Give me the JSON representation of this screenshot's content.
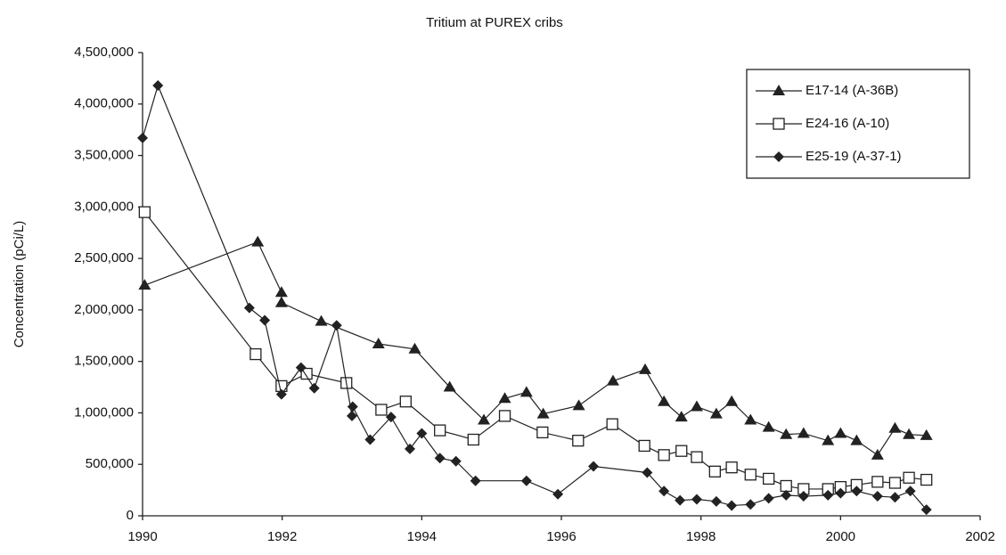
{
  "chart_data": {
    "type": "line",
    "title": "Tritium at PUREX cribs",
    "y_label": "Concentration (pCi/L)",
    "xlim": [
      1990,
      2002
    ],
    "xticks": [
      1990,
      1992,
      1994,
      1996,
      1998,
      2000,
      2002
    ],
    "ylim": [
      0,
      4500000
    ],
    "yticks": [
      0,
      {
        "value": 500000,
        "label": "500,000"
      },
      {
        "value": 1000000,
        "label": "1,000,000"
      },
      {
        "value": 1500000,
        "label": "1,500,000"
      },
      {
        "value": 2000000,
        "label": "2,000,000"
      },
      {
        "value": 2500000,
        "label": "2,500,000"
      },
      {
        "value": 3000000,
        "label": "3,000,000"
      },
      {
        "value": 3500000,
        "label": "3,500,000"
      },
      {
        "value": 4000000,
        "label": "4,000,000"
      },
      {
        "value": 4500000,
        "label": "4,500,000"
      }
    ],
    "grid": false,
    "legend": "upper right",
    "series": [
      {
        "name": "E17-14 (A-36B)",
        "color": "#222222",
        "marker": "triangle",
        "x": [
          1990.03,
          1991.65,
          1991.99,
          1991.99,
          1992.56,
          1993.38,
          1993.9,
          1994.4,
          1994.89,
          1995.19,
          1995.5,
          1995.74,
          1996.25,
          1996.74,
          1997.2,
          1997.47,
          1997.72,
          1997.94,
          1998.22,
          1998.44,
          1998.71,
          1998.97,
          1999.22,
          1999.47,
          1999.82,
          2000.0,
          2000.23,
          2000.53,
          2000.78,
          2000.98,
          2001.23
        ],
        "values": [
          2240000,
          2660000,
          2170000,
          2070000,
          1890000,
          1670000,
          1620000,
          1250000,
          930000,
          1140000,
          1200000,
          990000,
          1070000,
          1310000,
          1420000,
          1110000,
          960000,
          1060000,
          990000,
          1110000,
          930000,
          860000,
          790000,
          800000,
          730000,
          800000,
          730000,
          590000,
          850000,
          790000,
          780000
        ]
      },
      {
        "name": "E24-16 (A-10)",
        "color": "#222222",
        "marker": "square",
        "x": [
          1990.03,
          1991.62,
          1991.99,
          1992.35,
          1992.92,
          1993.42,
          1993.77,
          1994.26,
          1994.74,
          1995.19,
          1995.73,
          1996.24,
          1996.73,
          1997.19,
          1997.47,
          1997.72,
          1997.94,
          1998.2,
          1998.44,
          1998.71,
          1998.97,
          1999.22,
          1999.47,
          1999.82,
          2000.0,
          2000.23,
          2000.53,
          2000.78,
          2000.98,
          2001.23
        ],
        "values": [
          2950000,
          1570000,
          1260000,
          1380000,
          1290000,
          1030000,
          1110000,
          830000,
          740000,
          970000,
          810000,
          730000,
          890000,
          680000,
          590000,
          630000,
          570000,
          430000,
          470000,
          400000,
          360000,
          290000,
          260000,
          260000,
          280000,
          300000,
          330000,
          320000,
          370000,
          350000
        ]
      },
      {
        "name": "E25-19 (A-37-1)",
        "color": "#222222",
        "marker": "diamond",
        "x": [
          1990.0,
          1990.22,
          1991.53,
          1991.75,
          1991.99,
          1992.27,
          1992.46,
          1992.78,
          1993.0,
          1993.01,
          1993.26,
          1993.56,
          1993.83,
          1994.0,
          1994.26,
          1994.49,
          1994.77,
          1995.5,
          1995.95,
          1996.46,
          1997.23,
          1997.47,
          1997.7,
          1997.94,
          1998.22,
          1998.44,
          1998.71,
          1998.97,
          1999.22,
          1999.47,
          1999.82,
          2000.0,
          2000.23,
          2000.53,
          2000.78,
          2001.0,
          2001.23
        ],
        "values": [
          3670000,
          4180000,
          2020000,
          1900000,
          1180000,
          1440000,
          1240000,
          1850000,
          970000,
          1060000,
          740000,
          960000,
          650000,
          800000,
          560000,
          530000,
          340000,
          340000,
          210000,
          480000,
          420000,
          240000,
          150000,
          160000,
          140000,
          100000,
          110000,
          170000,
          200000,
          190000,
          200000,
          220000,
          240000,
          190000,
          180000,
          240000,
          60000
        ]
      }
    ]
  }
}
